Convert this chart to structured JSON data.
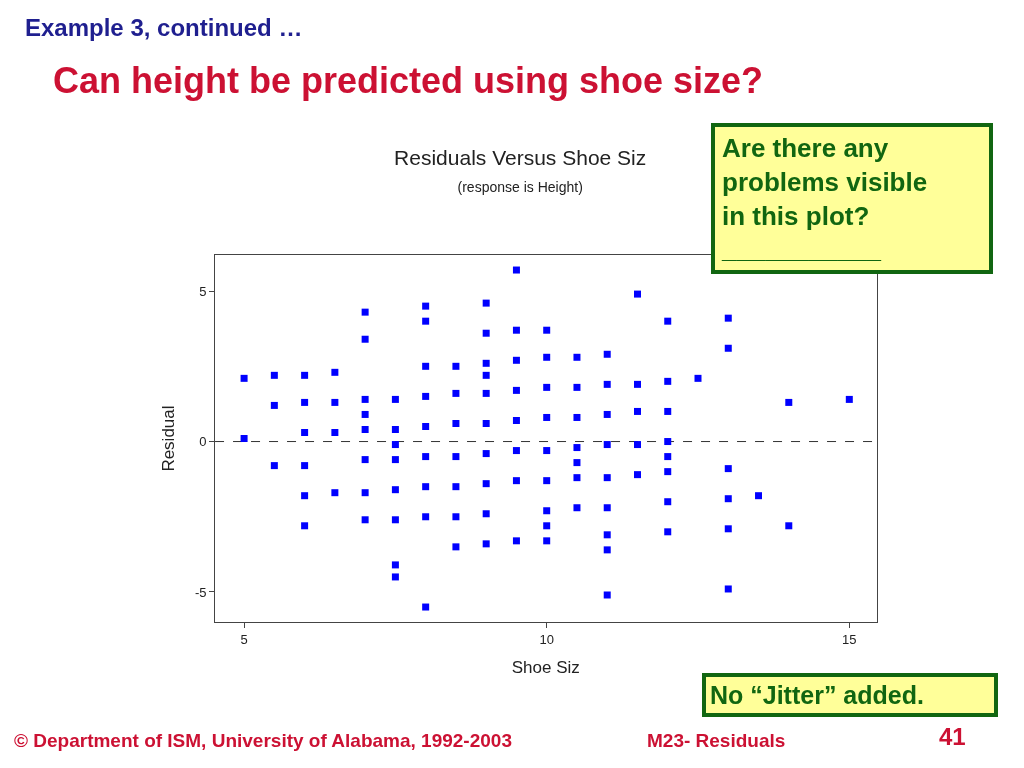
{
  "chart_data": {
    "type": "scatter",
    "title": "Residuals Versus Shoe Siz",
    "subtitle": "(response is Height)",
    "xlabel": "Shoe Siz",
    "ylabel": "Residual",
    "annotations": [
      "Example 3, continued …",
      "Can height be predicted using shoe size?",
      "Are there any\nproblems visible\nin this plot?\n___________",
      "No “Jitter” added.",
      "© Department of ISM, University of Alabama, 1992-2003",
      "M23- Residuals",
      "41"
    ],
    "x": [
      5,
      5,
      5.5,
      5.5,
      5.5,
      6,
      6,
      6,
      6,
      6,
      6,
      6.5,
      6.5,
      6.5,
      6.5,
      7,
      7,
      7,
      7,
      7,
      7,
      7,
      7,
      7.5,
      7.5,
      7.5,
      7.5,
      7.5,
      7.5,
      7.5,
      7.5,
      8,
      8,
      8,
      8,
      8,
      8,
      8,
      8,
      8,
      8.5,
      8.5,
      8.5,
      8.5,
      8.5,
      8.5,
      8.5,
      9,
      9,
      9,
      9,
      9,
      9,
      9,
      9,
      9,
      9,
      9.5,
      9.5,
      9.5,
      9.5,
      9.5,
      9.5,
      9.5,
      9.5,
      10,
      10,
      10,
      10,
      10,
      10,
      10,
      10,
      10,
      10.5,
      10.5,
      10.5,
      10.5,
      10.5,
      10.5,
      10.5,
      11,
      11,
      11,
      11,
      11,
      11,
      11,
      11,
      11,
      11.5,
      11.5,
      11.5,
      11.5,
      11.5,
      12,
      12,
      12,
      12,
      12,
      12,
      12,
      12,
      12.5,
      13,
      13,
      13,
      13,
      13,
      13,
      13.5,
      14,
      14,
      15
    ],
    "values": [
      2.1,
      0.1,
      2.2,
      1.2,
      -0.8,
      2.2,
      1.3,
      0.3,
      -0.8,
      -1.8,
      -2.8,
      2.3,
      1.3,
      0.3,
      -1.7,
      4.3,
      3.4,
      1.4,
      0.9,
      0.4,
      -0.6,
      -1.7,
      -2.6,
      1.4,
      0.4,
      -0.1,
      -0.6,
      -1.6,
      -2.6,
      -4.1,
      -4.5,
      4.5,
      4.0,
      2.5,
      1.5,
      0.5,
      -0.5,
      -1.5,
      -2.5,
      -5.5,
      2.5,
      1.6,
      0.6,
      -0.5,
      -1.5,
      -2.5,
      -3.5,
      4.6,
      3.6,
      2.6,
      2.2,
      1.6,
      0.6,
      -0.4,
      -1.4,
      -2.4,
      -3.4,
      5.7,
      3.7,
      2.7,
      1.7,
      0.7,
      -0.3,
      -1.3,
      -3.3,
      3.7,
      2.8,
      1.8,
      0.8,
      -0.3,
      -1.3,
      -2.3,
      -2.8,
      -3.3,
      2.8,
      1.8,
      0.8,
      -0.2,
      -0.7,
      -1.2,
      -2.2,
      2.9,
      1.9,
      0.9,
      -0.1,
      -1.2,
      -2.2,
      -3.1,
      -3.6,
      -5.1,
      4.9,
      1.9,
      1.0,
      -0.1,
      -1.1,
      4.0,
      2.0,
      1.0,
      0.0,
      -0.5,
      -1.0,
      -2.0,
      -3.0,
      2.1,
      4.1,
      3.1,
      -0.9,
      -1.9,
      -2.9,
      -4.9,
      -1.8,
      1.3,
      -2.8,
      1.4
    ],
    "color": "#0000ff",
    "marker": "square",
    "grid": false,
    "xlim": [
      4.52,
      15.45
    ],
    "ylim": [
      -6.0,
      6.2
    ],
    "xticks": [
      5,
      10,
      15
    ],
    "yticks": [
      -5,
      0,
      5
    ],
    "ref_lines": [
      {
        "axis": "y",
        "value": 0,
        "color": "#333333",
        "line_style": "dashed"
      }
    ]
  }
}
